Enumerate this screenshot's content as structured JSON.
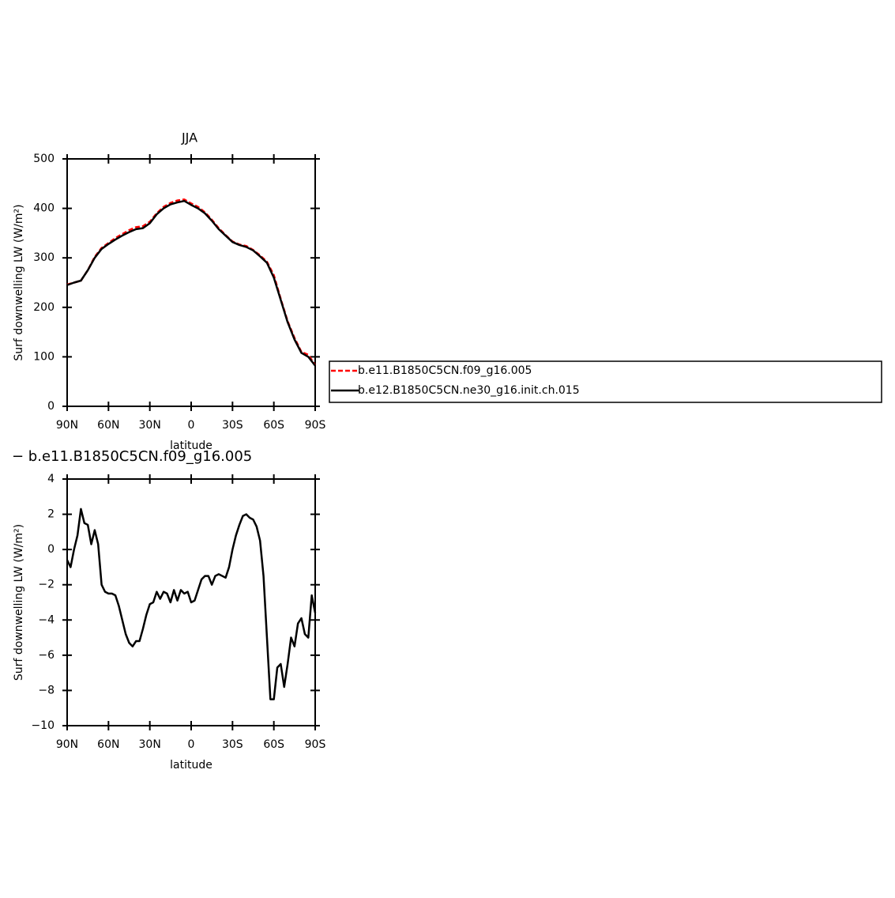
{
  "chart_data": [
    {
      "type": "line",
      "title": "JJA",
      "xlabel": "latitude",
      "ylabel": "Surf downwelling LW (W/m²)",
      "x": [
        90,
        85,
        80,
        75,
        70,
        65,
        60,
        55,
        50,
        45,
        40,
        35,
        30,
        25,
        20,
        15,
        10,
        5,
        0,
        -5,
        -10,
        -15,
        -20,
        -25,
        -30,
        -35,
        -40,
        -45,
        -50,
        -55,
        -60,
        -65,
        -70,
        -75,
        -80,
        -85,
        -90
      ],
      "series": [
        {
          "name": "b.e11.B1850C5CN.f09_g16.005",
          "color": "#ff0000",
          "dash": "dashed",
          "values": [
            246,
            250,
            254,
            275,
            302,
            320,
            330,
            340,
            348,
            356,
            362,
            364,
            373,
            390,
            403,
            411,
            416,
            418,
            410,
            403,
            392,
            377,
            360,
            346,
            333,
            327,
            324,
            316,
            305,
            292,
            265,
            217,
            172,
            138,
            110,
            104,
            83
          ]
        },
        {
          "name": "b.e12.B1850C5CN.ne30_g16.init.ch.015",
          "color": "#000000",
          "dash": "solid",
          "values": [
            245,
            250,
            254,
            275,
            300,
            318,
            328,
            337,
            345,
            352,
            358,
            360,
            370,
            388,
            400,
            408,
            412,
            415,
            407,
            400,
            390,
            375,
            358,
            345,
            332,
            326,
            322,
            315,
            303,
            290,
            260,
            215,
            170,
            135,
            108,
            100,
            82
          ]
        }
      ],
      "xlim": [
        90,
        -90
      ],
      "ylim": [
        0,
        500
      ],
      "xticks": [
        {
          "value": 90,
          "label": "90N"
        },
        {
          "value": 60,
          "label": "60N"
        },
        {
          "value": 30,
          "label": "30N"
        },
        0,
        {
          "value": -30,
          "label": "30S"
        },
        {
          "value": -60,
          "label": "60S"
        },
        {
          "value": -90,
          "label": "90S"
        }
      ],
      "yticks": [
        0,
        100,
        200,
        300,
        400,
        500
      ],
      "legend": "right"
    },
    {
      "type": "line",
      "title": "− b.e11.B1850C5CN.f09_g16.005",
      "xlabel": "latitude",
      "ylabel": "Surf downwelling LW (W/m²)",
      "x": [
        90,
        87.5,
        85,
        82.5,
        80,
        77.5,
        75,
        72.5,
        70,
        67.5,
        65,
        62.5,
        60,
        57.5,
        55,
        52.5,
        50,
        47.5,
        45,
        42.5,
        40,
        37.5,
        35,
        32.5,
        30,
        27.5,
        25,
        22.5,
        20,
        17.5,
        15,
        12.5,
        10,
        7.5,
        5,
        2.5,
        0,
        -2.5,
        -5,
        -7.5,
        -10,
        -12.5,
        -15,
        -17.5,
        -20,
        -22.5,
        -25,
        -27.5,
        -30,
        -32.5,
        -35,
        -37.5,
        -40,
        -42.5,
        -45,
        -47.5,
        -50,
        -52.5,
        -55,
        -57.5,
        -60,
        -62.5,
        -65,
        -67.5,
        -70,
        -72.5,
        -75,
        -77.5,
        -80,
        -82.5,
        -85,
        -87.5,
        -90
      ],
      "color": "#000000",
      "values": [
        -0.6,
        -1.0,
        0.0,
        0.8,
        2.3,
        1.5,
        1.4,
        0.3,
        1.1,
        0.3,
        -2.0,
        -2.4,
        -2.5,
        -2.5,
        -2.6,
        -3.2,
        -4.0,
        -4.8,
        -5.3,
        -5.5,
        -5.2,
        -5.2,
        -4.5,
        -3.7,
        -3.1,
        -3.0,
        -2.4,
        -2.8,
        -2.4,
        -2.5,
        -3.0,
        -2.3,
        -2.9,
        -2.3,
        -2.5,
        -2.4,
        -3.0,
        -2.9,
        -2.3,
        -1.7,
        -1.5,
        -1.5,
        -2.0,
        -1.5,
        -1.4,
        -1.5,
        -1.6,
        -1.0,
        0.0,
        0.8,
        1.4,
        1.9,
        2.0,
        1.8,
        1.7,
        1.3,
        0.5,
        -1.5,
        -5.0,
        -8.5,
        -8.5,
        -6.7,
        -6.5,
        -7.8,
        -6.5,
        -5.0,
        -5.5,
        -4.2,
        -3.9,
        -4.8,
        -5.0,
        -2.6,
        -3.6
      ],
      "xlim": [
        90,
        -90
      ],
      "ylim": [
        -10,
        4
      ],
      "xticks": [
        {
          "value": 90,
          "label": "90N"
        },
        {
          "value": 60,
          "label": "60N"
        },
        {
          "value": 30,
          "label": "30N"
        },
        0,
        {
          "value": -30,
          "label": "30S"
        },
        {
          "value": -60,
          "label": "60S"
        },
        {
          "value": -90,
          "label": "90S"
        }
      ],
      "yticks": [
        {
          "value": -10,
          "label": "−10"
        },
        {
          "value": -8,
          "label": "−8"
        },
        {
          "value": -6,
          "label": "−6"
        },
        {
          "value": -4,
          "label": "−4"
        },
        {
          "value": -2,
          "label": "−2"
        },
        0,
        2,
        4
      ]
    }
  ]
}
